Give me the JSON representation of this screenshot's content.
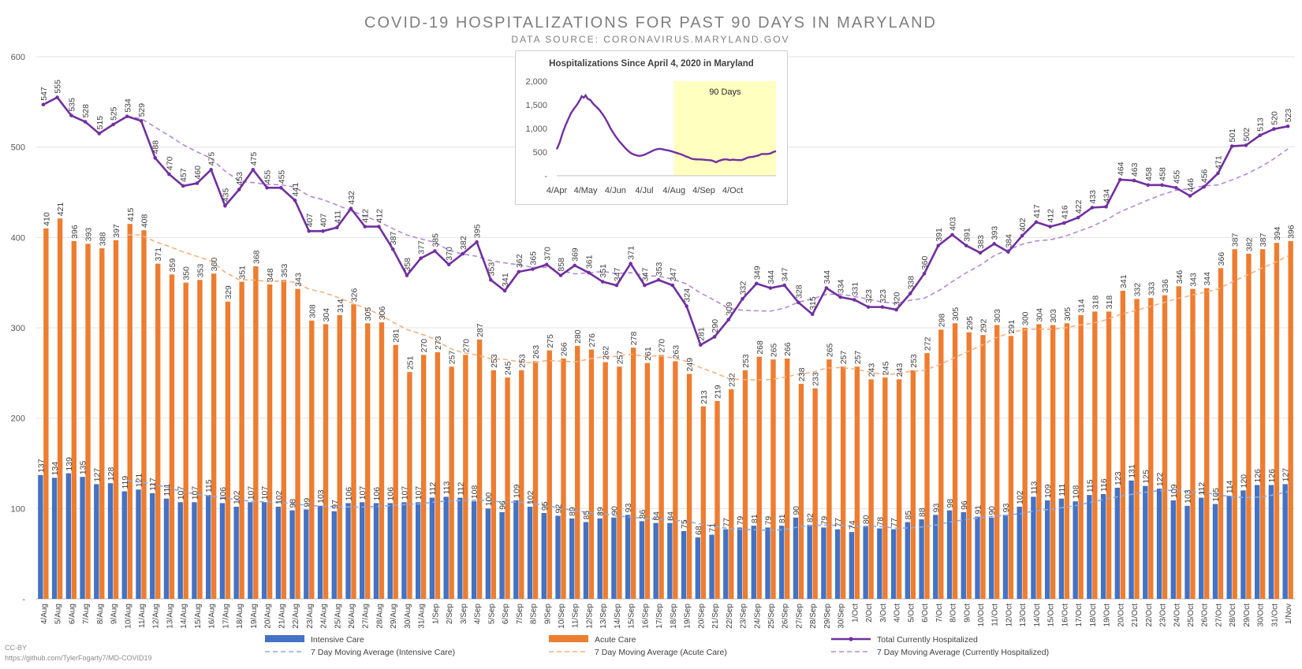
{
  "chart_data": [
    {
      "type": "bar",
      "title": "COVID-19 HOSPITALIZATIONS FOR PAST 90 DAYS IN MARYLAND",
      "subtitle": "DATA SOURCE: CORONAVIRUS.MARYLAND.GOV",
      "ylim": [
        0,
        600
      ],
      "yticks": [
        "-",
        "100",
        "200",
        "300",
        "400",
        "500",
        "600"
      ],
      "grid": true,
      "legend_position": "bottom",
      "categories": [
        "4/Aug",
        "5/Aug",
        "6/Aug",
        "7/Aug",
        "8/Aug",
        "9/Aug",
        "10/Aug",
        "11/Aug",
        "12/Aug",
        "13/Aug",
        "14/Aug",
        "15/Aug",
        "16/Aug",
        "17/Aug",
        "18/Aug",
        "19/Aug",
        "20/Aug",
        "21/Aug",
        "22/Aug",
        "23/Aug",
        "24/Aug",
        "25/Aug",
        "26/Aug",
        "27/Aug",
        "28/Aug",
        "29/Aug",
        "30/Aug",
        "31/Aug",
        "1/Sep",
        "2/Sep",
        "3/Sep",
        "4/Sep",
        "5/Sep",
        "6/Sep",
        "7/Sep",
        "8/Sep",
        "9/Sep",
        "10/Sep",
        "11/Sep",
        "12/Sep",
        "13/Sep",
        "14/Sep",
        "15/Sep",
        "16/Sep",
        "17/Sep",
        "18/Sep",
        "19/Sep",
        "20/Sep",
        "21/Sep",
        "22/Sep",
        "23/Sep",
        "24/Sep",
        "25/Sep",
        "26/Sep",
        "27/Sep",
        "28/Sep",
        "29/Sep",
        "30/Sep",
        "1/Oct",
        "2/Oct",
        "3/Oct",
        "4/Oct",
        "5/Oct",
        "6/Oct",
        "7/Oct",
        "8/Oct",
        "9/Oct",
        "10/Oct",
        "11/Oct",
        "12/Oct",
        "13/Oct",
        "14/Oct",
        "15/Oct",
        "16/Oct",
        "17/Oct",
        "18/Oct",
        "19/Oct",
        "20/Oct",
        "21/Oct",
        "22/Oct",
        "23/Oct",
        "24/Oct",
        "25/Oct",
        "26/Oct",
        "27/Oct",
        "28/Oct",
        "29/Oct",
        "30/Oct",
        "31/Oct",
        "1/Nov"
      ],
      "series": [
        {
          "name": "Intensive Care",
          "kind": "bar",
          "color": "#4472c4",
          "values": [
            137,
            134,
            139,
            135,
            127,
            128,
            119,
            121,
            117,
            111,
            107,
            107,
            115,
            106,
            102,
            107,
            107,
            102,
            98,
            99,
            103,
            97,
            106,
            107,
            106,
            106,
            107,
            107,
            112,
            113,
            112,
            108,
            100,
            96,
            109,
            102,
            95,
            92,
            89,
            85,
            89,
            90,
            93,
            86,
            84,
            84,
            75,
            68,
            71,
            77,
            79,
            81,
            79,
            81,
            90,
            82,
            79,
            77,
            74,
            80,
            78,
            77,
            85,
            88,
            93,
            98,
            96,
            91,
            90,
            93,
            102,
            113,
            109,
            111,
            108,
            115,
            116,
            123,
            131,
            125,
            122,
            109,
            103,
            112,
            105,
            114,
            120,
            126,
            126,
            127
          ]
        },
        {
          "name": "Acute Care",
          "kind": "bar",
          "color": "#ed7d31",
          "values": [
            410,
            421,
            396,
            393,
            388,
            397,
            415,
            408,
            371,
            359,
            350,
            353,
            360,
            329,
            351,
            368,
            348,
            353,
            343,
            308,
            304,
            314,
            326,
            305,
            306,
            281,
            251,
            270,
            273,
            257,
            270,
            287,
            253,
            245,
            253,
            263,
            275,
            266,
            280,
            276,
            262,
            257,
            278,
            261,
            270,
            263,
            249,
            213,
            219,
            232,
            253,
            268,
            265,
            266,
            238,
            233,
            265,
            257,
            257,
            243,
            245,
            243,
            253,
            272,
            298,
            305,
            295,
            292,
            303,
            291,
            300,
            304,
            303,
            305,
            314,
            318,
            318,
            341,
            332,
            333,
            336,
            346,
            343,
            344,
            366,
            387,
            382,
            387,
            394,
            396
          ]
        },
        {
          "name": "Total Currently Hospitalized",
          "kind": "line",
          "color": "#7030a0",
          "values": [
            547,
            555,
            535,
            528,
            515,
            525,
            534,
            529,
            488,
            470,
            457,
            460,
            475,
            435,
            453,
            475,
            455,
            455,
            441,
            407,
            407,
            411,
            432,
            412,
            412,
            387,
            358,
            377,
            385,
            370,
            382,
            395,
            353,
            341,
            362,
            365,
            370,
            358,
            369,
            361,
            351,
            347,
            371,
            347,
            353,
            347,
            324,
            281,
            290,
            309,
            332,
            349,
            344,
            347,
            328,
            315,
            344,
            334,
            331,
            323,
            323,
            320,
            338,
            360,
            391,
            403,
            391,
            383,
            393,
            384,
            402,
            417,
            412,
            416,
            422,
            433,
            434,
            464,
            463,
            458,
            458,
            455,
            446,
            456,
            471,
            501,
            502,
            513,
            520,
            523
          ]
        },
        {
          "name": "7 Day Moving Average (Intensive Care)",
          "kind": "dashed",
          "color": "#8faadc"
        },
        {
          "name": "7 Day Moving Average (Acute Care)",
          "kind": "dashed",
          "color": "#f4b183"
        },
        {
          "name": "7 Day Moving Average (Currently Hospitalized)",
          "kind": "dashed",
          "color": "#b28ad6"
        }
      ]
    },
    {
      "type": "line",
      "title": "Hospitalizations Since April 4, 2020 in Maryland",
      "annotation": "90 Days",
      "yticks": [
        "-",
        "500",
        "1,000",
        "1,500",
        "2,000"
      ],
      "ylim": [
        0,
        2000
      ],
      "xticks": [
        "4/Apr",
        "4/May",
        "4/Jun",
        "4/Jul",
        "4/Aug",
        "4/Sep",
        "4/Oct"
      ],
      "x_start": "2020-04-04",
      "highlight_start": "2020-08-04",
      "points": [
        [
          0,
          560
        ],
        [
          3,
          700
        ],
        [
          6,
          900
        ],
        [
          9,
          1060
        ],
        [
          12,
          1200
        ],
        [
          15,
          1330
        ],
        [
          18,
          1420
        ],
        [
          21,
          1500
        ],
        [
          24,
          1600
        ],
        [
          26,
          1680
        ],
        [
          28,
          1650
        ],
        [
          30,
          1700
        ],
        [
          32,
          1630
        ],
        [
          35,
          1600
        ],
        [
          38,
          1520
        ],
        [
          41,
          1460
        ],
        [
          44,
          1400
        ],
        [
          47,
          1320
        ],
        [
          50,
          1230
        ],
        [
          53,
          1120
        ],
        [
          56,
          1000
        ],
        [
          59,
          900
        ],
        [
          62,
          810
        ],
        [
          65,
          730
        ],
        [
          68,
          660
        ],
        [
          71,
          590
        ],
        [
          74,
          530
        ],
        [
          77,
          480
        ],
        [
          80,
          450
        ],
        [
          83,
          430
        ],
        [
          86,
          420
        ],
        [
          89,
          430
        ],
        [
          92,
          450
        ],
        [
          95,
          480
        ],
        [
          98,
          510
        ],
        [
          101,
          540
        ],
        [
          104,
          560
        ],
        [
          107,
          570
        ],
        [
          110,
          560
        ],
        [
          113,
          545
        ],
        [
          116,
          535
        ],
        [
          119,
          520
        ],
        [
          122,
          500
        ],
        [
          125,
          480
        ],
        [
          128,
          460
        ],
        [
          131,
          440
        ],
        [
          134,
          410
        ],
        [
          137,
          390
        ],
        [
          140,
          360
        ],
        [
          143,
          350
        ],
        [
          146,
          345
        ],
        [
          149,
          345
        ],
        [
          152,
          340
        ],
        [
          155,
          335
        ],
        [
          158,
          330
        ],
        [
          161,
          325
        ],
        [
          164,
          300
        ],
        [
          166,
          285
        ],
        [
          168,
          310
        ],
        [
          171,
          330
        ],
        [
          174,
          345
        ],
        [
          177,
          345
        ],
        [
          180,
          330
        ],
        [
          183,
          340
        ],
        [
          186,
          335
        ],
        [
          189,
          330
        ],
        [
          192,
          330
        ],
        [
          195,
          350
        ],
        [
          198,
          380
        ],
        [
          201,
          395
        ],
        [
          204,
          400
        ],
        [
          207,
          415
        ],
        [
          210,
          430
        ],
        [
          213,
          460
        ],
        [
          216,
          460
        ],
        [
          219,
          460
        ],
        [
          222,
          470
        ],
        [
          225,
          500
        ],
        [
          228,
          520
        ],
        [
          211,
          440
        ]
      ]
    }
  ],
  "footer": {
    "license": "CC-BY",
    "source_url": "https://github.com/TylerFogarty7/MD-COVID19"
  }
}
